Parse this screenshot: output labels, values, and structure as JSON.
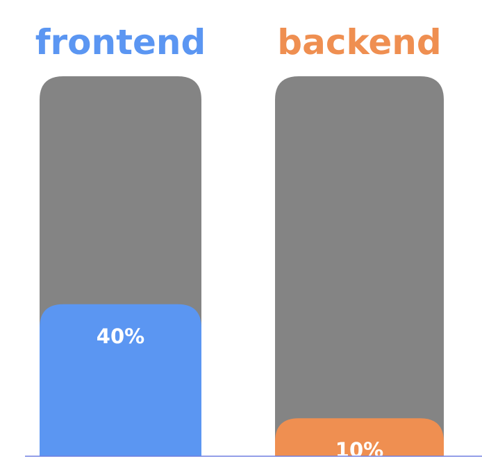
{
  "chart_data": {
    "type": "bar",
    "categories": [
      "frontend",
      "backend"
    ],
    "values": [
      40,
      10
    ],
    "labels": [
      "40%",
      "10%"
    ],
    "unit": "%",
    "ylim": [
      0,
      100
    ],
    "colors": [
      "#5b96f2",
      "#ef8f51"
    ],
    "track_color": "#848484",
    "baseline_color": "#6f7fe0",
    "grid": false,
    "legend": "none"
  }
}
